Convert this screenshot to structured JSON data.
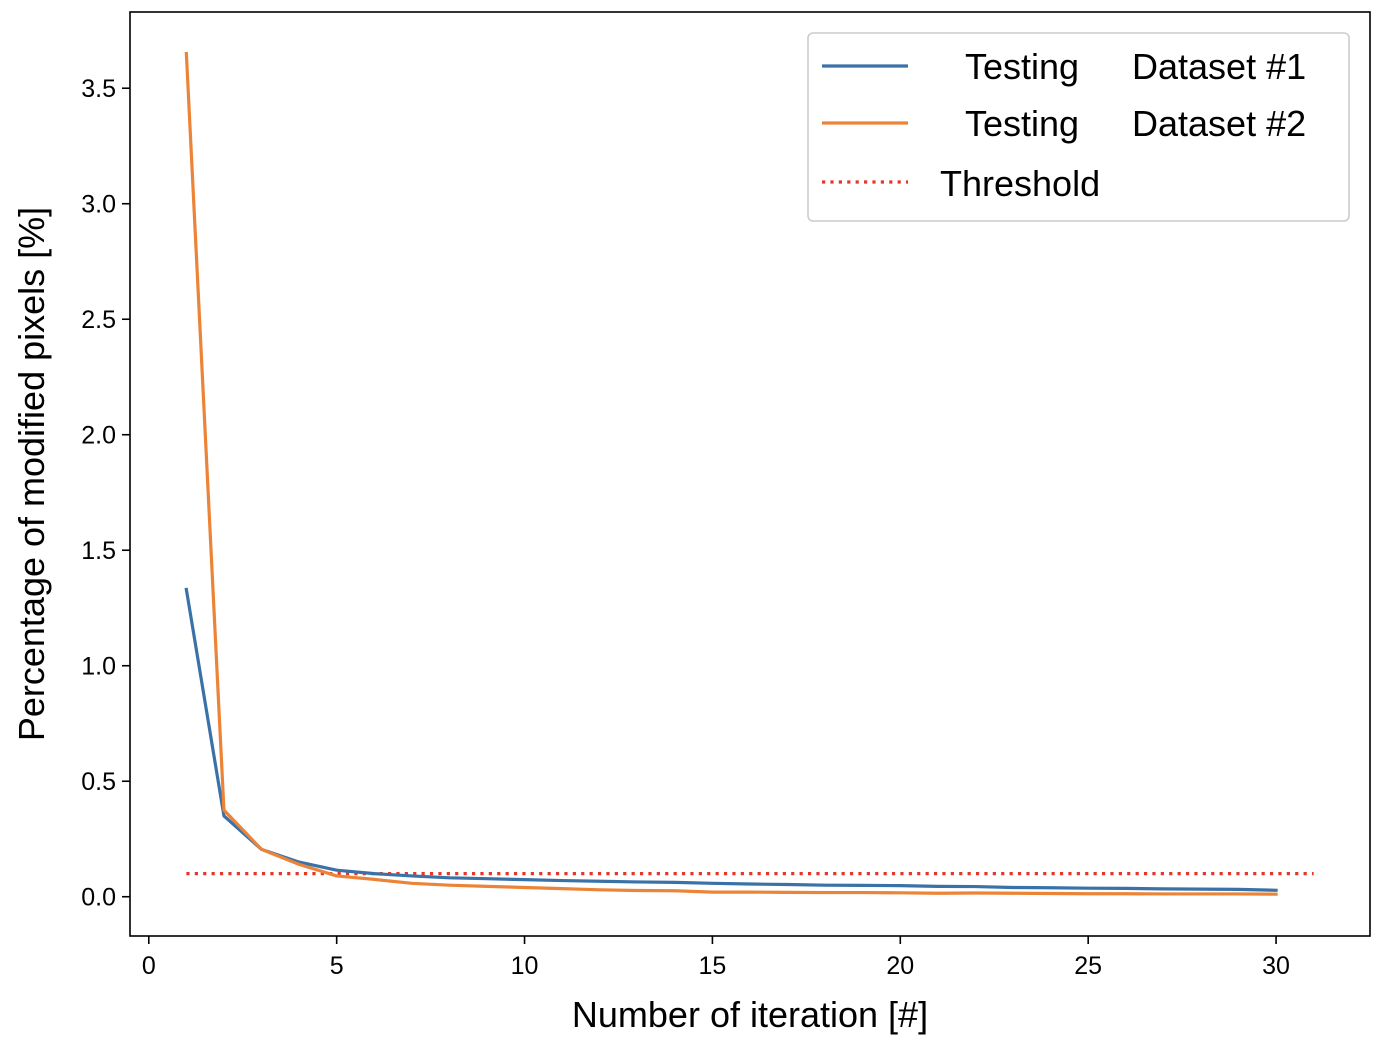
{
  "chart_data": {
    "type": "line",
    "title": "",
    "xlabel": "Number of iteration [#]",
    "ylabel": "Percentage of modified pixels [%]",
    "xlim": [
      -0.5,
      32.5
    ],
    "ylim": [
      -0.17,
      3.83
    ],
    "xticks": [
      0,
      5,
      10,
      15,
      20,
      25,
      30
    ],
    "xtick_labels": [
      "0",
      "5",
      "10",
      "15",
      "20",
      "25",
      "30"
    ],
    "yticks": [
      0.0,
      0.5,
      1.0,
      1.5,
      2.0,
      2.5,
      3.0,
      3.5
    ],
    "ytick_labels": [
      "0.0",
      "0.5",
      "1.0",
      "1.5",
      "2.0",
      "2.5",
      "3.0",
      "3.5"
    ],
    "grid": false,
    "legend_position": "top-right",
    "series": [
      {
        "name": "Testing Dataset #1",
        "legend_parts": [
          "Testing",
          "Dataset #1"
        ],
        "color": "#3a72a8",
        "style": "solid",
        "x": [
          1,
          2,
          3,
          4,
          5,
          6,
          7,
          8,
          9,
          10,
          11,
          12,
          13,
          14,
          15,
          16,
          17,
          18,
          19,
          20,
          21,
          22,
          23,
          24,
          25,
          26,
          27,
          28,
          29,
          30
        ],
        "values": [
          1.33,
          0.35,
          0.205,
          0.15,
          0.115,
          0.1,
          0.09,
          0.082,
          0.078,
          0.074,
          0.07,
          0.067,
          0.064,
          0.062,
          0.058,
          0.055,
          0.053,
          0.05,
          0.049,
          0.048,
          0.045,
          0.044,
          0.04,
          0.039,
          0.037,
          0.036,
          0.034,
          0.033,
          0.032,
          0.028
        ]
      },
      {
        "name": "Testing Dataset #2",
        "legend_parts": [
          "Testing",
          "Dataset #2"
        ],
        "color": "#ec8438",
        "style": "solid",
        "x": [
          1,
          2,
          3,
          4,
          5,
          6,
          7,
          8,
          9,
          10,
          11,
          12,
          13,
          14,
          15,
          16,
          17,
          18,
          19,
          20,
          21,
          22,
          23,
          24,
          25,
          26,
          27,
          28,
          29,
          30
        ],
        "values": [
          3.65,
          0.375,
          0.205,
          0.14,
          0.09,
          0.075,
          0.058,
          0.05,
          0.045,
          0.04,
          0.035,
          0.03,
          0.027,
          0.026,
          0.02,
          0.02,
          0.019,
          0.018,
          0.018,
          0.017,
          0.015,
          0.016,
          0.015,
          0.014,
          0.013,
          0.013,
          0.012,
          0.012,
          0.012,
          0.011
        ]
      },
      {
        "name": "Threshold",
        "legend_parts": [
          "Threshold"
        ],
        "color": "#e8352a",
        "style": "dotted",
        "x": [
          1,
          31
        ],
        "values": [
          0.1,
          0.1
        ]
      }
    ]
  }
}
